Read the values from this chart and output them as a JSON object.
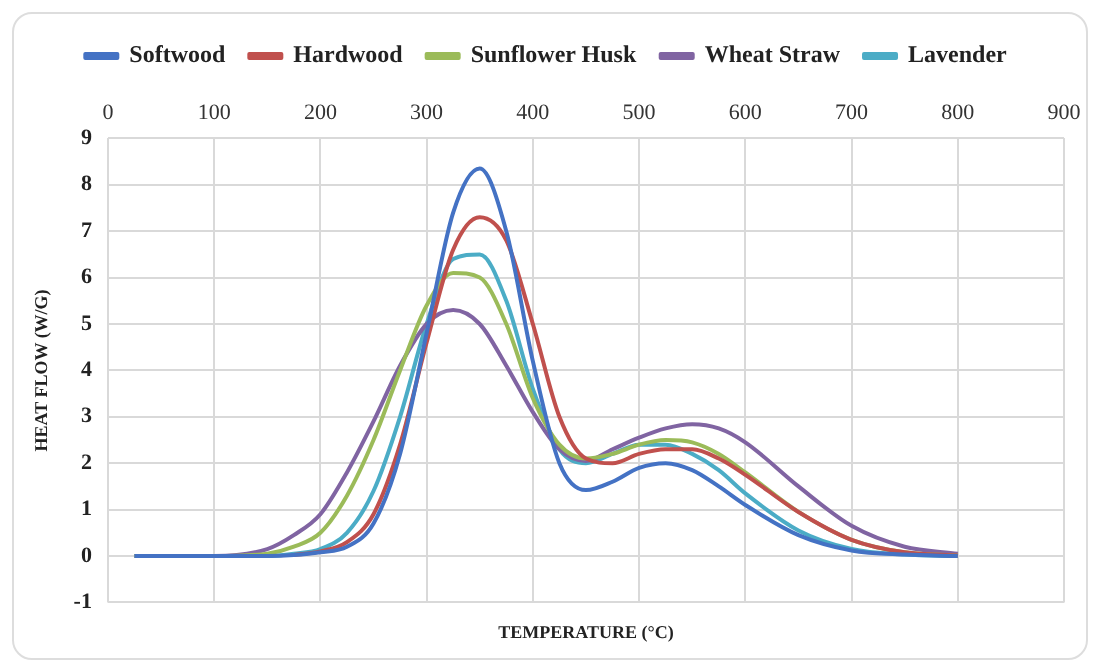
{
  "chart_data": {
    "type": "line",
    "xlabel": "TEMPERATURE (°C)",
    "ylabel": "HEAT FLOW (W/G)",
    "x": [
      25,
      100,
      150,
      175,
      200,
      225,
      250,
      275,
      300,
      325,
      350,
      375,
      400,
      425,
      450,
      475,
      500,
      525,
      550,
      575,
      600,
      650,
      700,
      750,
      800
    ],
    "series": [
      {
        "name": "Softwood",
        "color": "#4472c4",
        "values": [
          0,
          0,
          0,
          0.02,
          0.08,
          0.2,
          0.7,
          2.2,
          4.8,
          7.4,
          8.35,
          7.0,
          4.2,
          2.0,
          1.42,
          1.6,
          1.9,
          2.0,
          1.85,
          1.5,
          1.1,
          0.45,
          0.12,
          0.03,
          0
        ]
      },
      {
        "name": "Hardwood",
        "color": "#c0504d",
        "values": [
          null,
          null,
          null,
          0.02,
          0.1,
          0.3,
          0.9,
          2.4,
          4.6,
          6.6,
          7.3,
          6.8,
          5.0,
          3.0,
          2.1,
          2.0,
          2.2,
          2.3,
          2.3,
          2.1,
          1.75,
          0.95,
          0.35,
          0.08,
          0.01
        ]
      },
      {
        "name": "Sunflower Husk",
        "color": "#9bbb59",
        "values": [
          0,
          0,
          0.05,
          0.2,
          0.5,
          1.3,
          2.5,
          4.0,
          5.4,
          6.1,
          6.0,
          5.0,
          3.4,
          2.4,
          2.1,
          2.2,
          2.4,
          2.5,
          2.45,
          2.2,
          1.8,
          0.95,
          0.35,
          0.08,
          0.01
        ]
      },
      {
        "name": "Wheat Straw",
        "color": "#8064a2",
        "values": [
          0,
          0,
          0.15,
          0.45,
          0.9,
          1.8,
          2.9,
          4.1,
          5.0,
          5.3,
          5.0,
          4.1,
          3.1,
          2.3,
          2.05,
          2.3,
          2.55,
          2.75,
          2.84,
          2.75,
          2.45,
          1.5,
          0.65,
          0.2,
          0.05
        ]
      },
      {
        "name": "Lavender",
        "color": "#4bacc6",
        "values": [
          0,
          0,
          0,
          0.05,
          0.15,
          0.5,
          1.4,
          3.0,
          5.0,
          6.4,
          6.5,
          5.5,
          3.6,
          2.3,
          2.0,
          2.2,
          2.4,
          2.4,
          2.2,
          1.85,
          1.35,
          0.55,
          0.15,
          0.03,
          0
        ]
      }
    ],
    "xlim": [
      0,
      900
    ],
    "xticks": [
      0,
      100,
      200,
      300,
      400,
      500,
      600,
      700,
      800,
      900
    ],
    "ylim": [
      -1,
      9
    ],
    "yticks": [
      -1,
      0,
      1,
      2,
      3,
      4,
      5,
      6,
      7,
      8,
      9
    ],
    "grid": true,
    "legend": "top",
    "marker": "none",
    "line_style": "solid"
  }
}
